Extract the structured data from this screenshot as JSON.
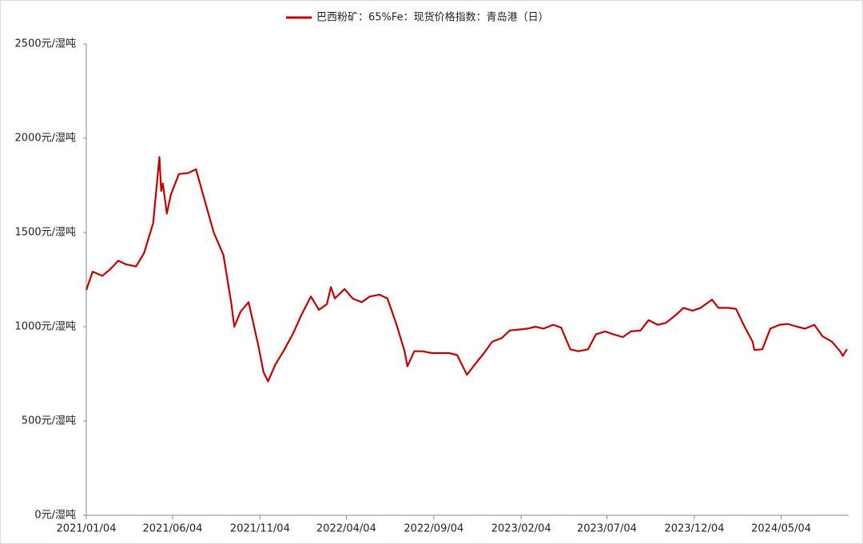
{
  "chart_data": {
    "type": "line",
    "x": [
      "2021/01/04",
      "2021/01/15",
      "2021/02/01",
      "2021/02/15",
      "2021/03/01",
      "2021/03/15",
      "2021/04/01",
      "2021/04/15",
      "2021/05/01",
      "2021/05/12",
      "2021/05/15",
      "2021/05/18",
      "2021/05/25",
      "2021/06/01",
      "2021/06/15",
      "2021/07/01",
      "2021/07/15",
      "2021/08/01",
      "2021/08/15",
      "2021/09/01",
      "2021/09/15",
      "2021/09/20",
      "2021/10/01",
      "2021/10/15",
      "2021/11/01",
      "2021/11/10",
      "2021/11/18",
      "2021/12/01",
      "2021/12/15",
      "2022/01/01",
      "2022/01/15",
      "2022/02/01",
      "2022/02/15",
      "2022/03/01",
      "2022/03/08",
      "2022/03/15",
      "2022/04/01",
      "2022/04/15",
      "2022/05/01",
      "2022/05/15",
      "2022/06/01",
      "2022/06/15",
      "2022/07/01",
      "2022/07/15",
      "2022/07/20",
      "2022/08/01",
      "2022/08/15",
      "2022/09/01",
      "2022/09/15",
      "2022/10/01",
      "2022/10/15",
      "2022/11/01",
      "2022/11/15",
      "2022/12/01",
      "2022/12/15",
      "2023/01/01",
      "2023/01/15",
      "2023/02/01",
      "2023/02/15",
      "2023/03/01",
      "2023/03/15",
      "2023/04/01",
      "2023/04/15",
      "2023/05/01",
      "2023/05/15",
      "2023/06/01",
      "2023/06/15",
      "2023/07/01",
      "2023/07/15",
      "2023/08/01",
      "2023/08/15",
      "2023/09/01",
      "2023/09/15",
      "2023/10/01",
      "2023/10/15",
      "2023/11/01",
      "2023/11/15",
      "2023/12/01",
      "2023/12/15",
      "2024/01/04",
      "2024/01/15",
      "2024/02/01",
      "2024/02/15",
      "2024/03/01",
      "2024/03/15",
      "2024/03/18",
      "2024/04/01",
      "2024/04/15",
      "2024/05/01",
      "2024/05/15",
      "2024/06/01",
      "2024/06/15",
      "2024/07/01",
      "2024/07/15",
      "2024/08/01",
      "2024/08/15",
      "2024/08/20",
      "2024/08/27"
    ],
    "series": [
      {
        "name": "巴西粉矿：65%Fe：现货价格指数：青岛港（日）",
        "color": "#c00000",
        "values": [
          1195,
          1292,
          1270,
          1305,
          1350,
          1330,
          1320,
          1390,
          1550,
          1900,
          1720,
          1760,
          1600,
          1700,
          1810,
          1815,
          1835,
          1650,
          1500,
          1380,
          1120,
          1000,
          1080,
          1130,
          900,
          760,
          710,
          800,
          870,
          965,
          1060,
          1160,
          1090,
          1120,
          1210,
          1150,
          1200,
          1150,
          1130,
          1160,
          1170,
          1150,
          1010,
          870,
          790,
          870,
          870,
          860,
          860,
          860,
          850,
          745,
          800,
          860,
          920,
          940,
          980,
          985,
          990,
          1000,
          990,
          1010,
          995,
          880,
          870,
          880,
          960,
          975,
          960,
          945,
          975,
          980,
          1035,
          1010,
          1020,
          1060,
          1100,
          1085,
          1100,
          1144,
          1100,
          1100,
          1095,
          1000,
          920,
          877,
          880,
          990,
          1010,
          1015,
          1000,
          990,
          1010,
          950,
          920,
          870,
          845,
          881
        ]
      }
    ],
    "xlim": [
      "2021/01/04",
      "2024/08/30"
    ],
    "xticks": [
      "2021/01/04",
      "2021/06/04",
      "2021/11/04",
      "2022/04/04",
      "2022/09/04",
      "2023/02/04",
      "2023/07/04",
      "2023/12/04",
      "2024/05/04"
    ],
    "ylim": [
      0,
      2500
    ],
    "yticks": [
      {
        "value": 0,
        "label": "0元/湿吨"
      },
      {
        "value": 500,
        "label": "500元/湿吨"
      },
      {
        "value": 1000,
        "label": "1000元/湿吨"
      },
      {
        "value": 1500,
        "label": "1500元/湿吨"
      },
      {
        "value": 2000,
        "label": "2000元/湿吨"
      },
      {
        "value": 2500,
        "label": "2500元/湿吨"
      }
    ],
    "legend": "top"
  }
}
